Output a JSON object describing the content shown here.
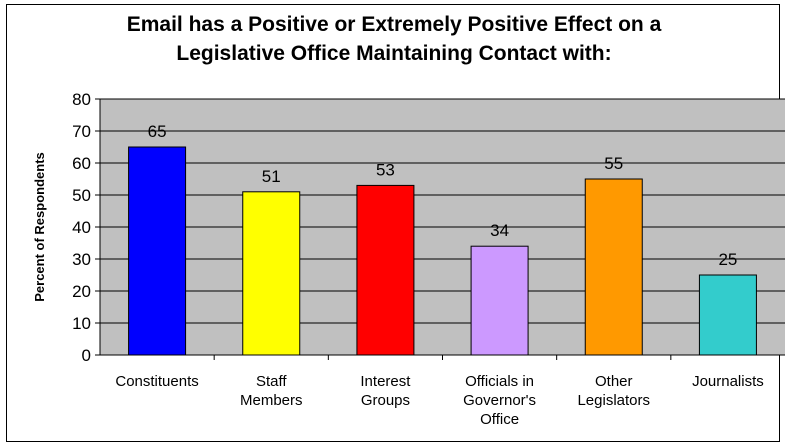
{
  "chart_data": {
    "type": "bar",
    "title_lines": [
      "Email has a Positive or Extremely Positive Effect on a",
      "Legislative Office Maintaining Contact with:"
    ],
    "ylabel": "Percent of Respondents",
    "xlabel": "",
    "ylim": [
      0,
      80
    ],
    "ytick_step": 10,
    "grid": true,
    "plot_background": "#c0c0c0",
    "categories": [
      [
        "Constituents"
      ],
      [
        "Staff",
        "Members"
      ],
      [
        "Interest",
        "Groups"
      ],
      [
        "Officials in",
        "Governor's",
        "Office"
      ],
      [
        "Other",
        "Legislators"
      ],
      [
        "Journalists"
      ]
    ],
    "values": [
      65,
      51,
      53,
      34,
      55,
      25
    ],
    "colors": [
      "#0000ff",
      "#ffff00",
      "#ff0000",
      "#cc99ff",
      "#ff9900",
      "#33cccc"
    ]
  }
}
